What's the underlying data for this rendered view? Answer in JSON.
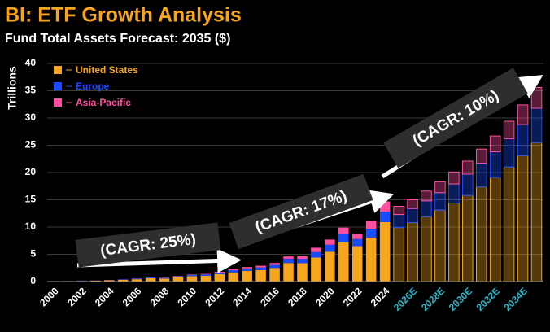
{
  "chart_data": {
    "type": "bar",
    "stacked": true,
    "title": "BI: ETF Growth Analysis",
    "subtitle": "Fund Total Assets Forecast: 2035 ($)",
    "y_label": "Trillions",
    "categories": [
      "2000",
      null,
      "2002",
      null,
      "2004",
      null,
      "2006",
      null,
      "2008",
      null,
      "2010",
      null,
      "2012",
      null,
      "2014",
      null,
      "2016",
      null,
      "2018",
      null,
      "2020",
      null,
      "2022",
      null,
      "2024",
      null,
      "2026E",
      null,
      "2028E",
      null,
      "2030E",
      null,
      "2032E",
      null,
      "2034E",
      null
    ],
    "series": [
      {
        "name": "United States",
        "color": "#f7a51c",
        "values": [
          0.07,
          0.08,
          0.1,
          0.15,
          0.22,
          0.3,
          0.42,
          0.6,
          0.53,
          0.78,
          0.99,
          1.05,
          1.34,
          1.68,
          1.97,
          2.1,
          2.5,
          3.4,
          3.37,
          4.4,
          5.45,
          7.2,
          6.5,
          8.1,
          10.9,
          9.9,
          10.8,
          11.9,
          13.1,
          14.4,
          15.8,
          17.4,
          19.1,
          21.0,
          23.1,
          25.5
        ]
      },
      {
        "name": "Europe",
        "color": "#1a4cff",
        "values": [
          0.01,
          0.01,
          0.05,
          0.03,
          0.05,
          0.07,
          0.12,
          0.15,
          0.13,
          0.18,
          0.24,
          0.25,
          0.3,
          0.4,
          0.45,
          0.5,
          0.55,
          0.8,
          0.8,
          1.0,
          1.3,
          1.5,
          1.3,
          1.6,
          1.9,
          2.4,
          2.6,
          2.9,
          3.2,
          3.5,
          3.9,
          4.3,
          4.7,
          5.2,
          5.7,
          6.3
        ]
      },
      {
        "name": "Asia-Pacific",
        "color": "#ff4fa0",
        "values": [
          0.01,
          0.01,
          0.02,
          0.02,
          0.03,
          0.03,
          0.04,
          0.05,
          0.05,
          0.06,
          0.08,
          0.1,
          0.15,
          0.2,
          0.25,
          0.3,
          0.35,
          0.4,
          0.5,
          0.8,
          0.95,
          1.2,
          1.0,
          1.4,
          1.9,
          1.5,
          1.6,
          1.8,
          2.0,
          2.2,
          2.4,
          2.6,
          2.9,
          3.2,
          3.6,
          3.8
        ]
      }
    ],
    "ylim": [
      0,
      40
    ],
    "yticks": [
      0,
      5,
      10,
      15,
      20,
      25,
      30,
      35,
      40
    ],
    "grid": true,
    "legend": "top-left",
    "annotations": [
      "(CAGR: 25%)",
      "(CAGR: 17%)",
      "(CAGR: 10%)"
    ]
  }
}
